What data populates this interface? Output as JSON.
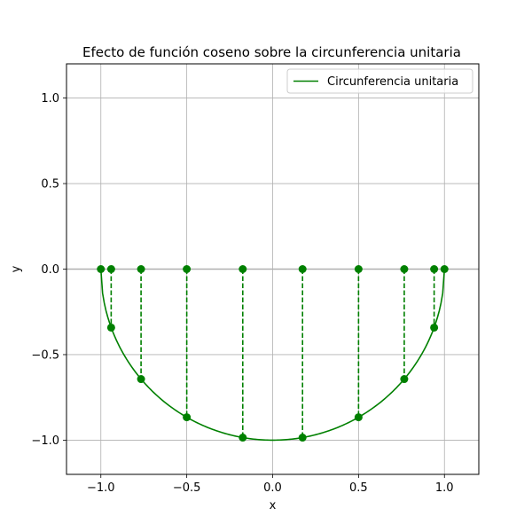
{
  "chart_data": {
    "type": "line",
    "title": "Efecto de función coseno sobre la circunferencia unitaria",
    "xlabel": "x",
    "ylabel": "y",
    "xlim": [
      -1.2,
      1.2
    ],
    "ylim": [
      -1.2,
      1.2
    ],
    "xticks": [
      -1.0,
      -0.5,
      0.0,
      0.5,
      1.0
    ],
    "yticks": [
      -1.0,
      -0.5,
      0.0,
      0.5,
      1.0
    ],
    "xtick_labels": [
      "−1.0",
      "−0.5",
      "0.0",
      "0.5",
      "1.0"
    ],
    "ytick_labels": [
      "−1.0",
      "−0.5",
      "0.0",
      "0.5",
      "1.0"
    ],
    "grid": true,
    "legend": {
      "placement": "top-right",
      "entries": [
        "Circunferencia unitaria"
      ]
    },
    "series": [
      {
        "name": "Circunferencia unitaria",
        "type": "line",
        "color": "#008000",
        "curve": "lower unit semicircle y = -sqrt(1 - x^2)",
        "x_range": [
          -1.0,
          1.0
        ]
      },
      {
        "type": "scatter",
        "color": "#008000",
        "points_on_axis": [
          [
            -1.0,
            0.0
          ],
          [
            -0.94,
            0.0
          ],
          [
            -0.766,
            0.0
          ],
          [
            -0.5,
            0.0
          ],
          [
            -0.174,
            0.0
          ],
          [
            0.174,
            0.0
          ],
          [
            0.5,
            0.0
          ],
          [
            0.766,
            0.0
          ],
          [
            0.94,
            0.0
          ],
          [
            1.0,
            0.0
          ]
        ],
        "points_on_circle": [
          [
            -0.94,
            -0.342
          ],
          [
            -0.766,
            -0.643
          ],
          [
            -0.5,
            -0.866
          ],
          [
            -0.174,
            -0.985
          ],
          [
            0.174,
            -0.985
          ],
          [
            0.5,
            -0.866
          ],
          [
            0.766,
            -0.643
          ],
          [
            0.94,
            -0.342
          ]
        ]
      }
    ],
    "axis_line_y": 0.0,
    "colors": {
      "series": "#008000",
      "grid": "#b0b0b0",
      "axis_line": "#b0b0b0"
    }
  }
}
